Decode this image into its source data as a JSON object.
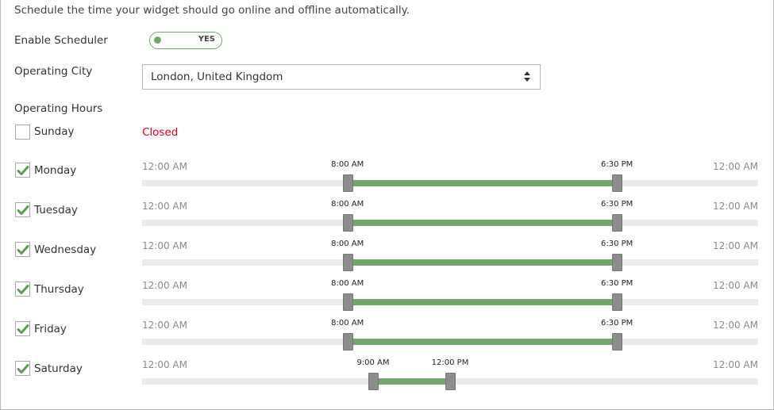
{
  "description": "Schedule the time your widget should go online and offline automatically.",
  "scheduler": {
    "label": "Enable Scheduler",
    "toggle_text": "YES",
    "enabled": true,
    "accent": "#74a56c"
  },
  "city": {
    "label": "Operating City",
    "value": "London, United Kingdom"
  },
  "hours": {
    "label": "Operating Hours",
    "closed_text": "Closed",
    "range_start": "12:00 AM",
    "range_end": "12:00 AM",
    "days": [
      {
        "name": "Sunday",
        "checked": false,
        "open": null,
        "close": null,
        "open_h": null,
        "close_h": null
      },
      {
        "name": "Monday",
        "checked": true,
        "open": "8:00 AM",
        "close": "6:30 PM",
        "open_h": 8,
        "close_h": 18.5
      },
      {
        "name": "Tuesday",
        "checked": true,
        "open": "8:00 AM",
        "close": "6:30 PM",
        "open_h": 8,
        "close_h": 18.5
      },
      {
        "name": "Wednesday",
        "checked": true,
        "open": "8:00 AM",
        "close": "6:30 PM",
        "open_h": 8,
        "close_h": 18.5
      },
      {
        "name": "Thursday",
        "checked": true,
        "open": "8:00 AM",
        "close": "6:30 PM",
        "open_h": 8,
        "close_h": 18.5
      },
      {
        "name": "Friday",
        "checked": true,
        "open": "8:00 AM",
        "close": "6:30 PM",
        "open_h": 8,
        "close_h": 18.5
      },
      {
        "name": "Saturday",
        "checked": true,
        "open": "9:00 AM",
        "close": "12:00 PM",
        "open_h": 9,
        "close_h": 12
      }
    ]
  },
  "colors": {
    "accent": "#74a56c",
    "closed": "#d0021b",
    "track": "#ebebeb",
    "handle": "#8d8d8d"
  }
}
